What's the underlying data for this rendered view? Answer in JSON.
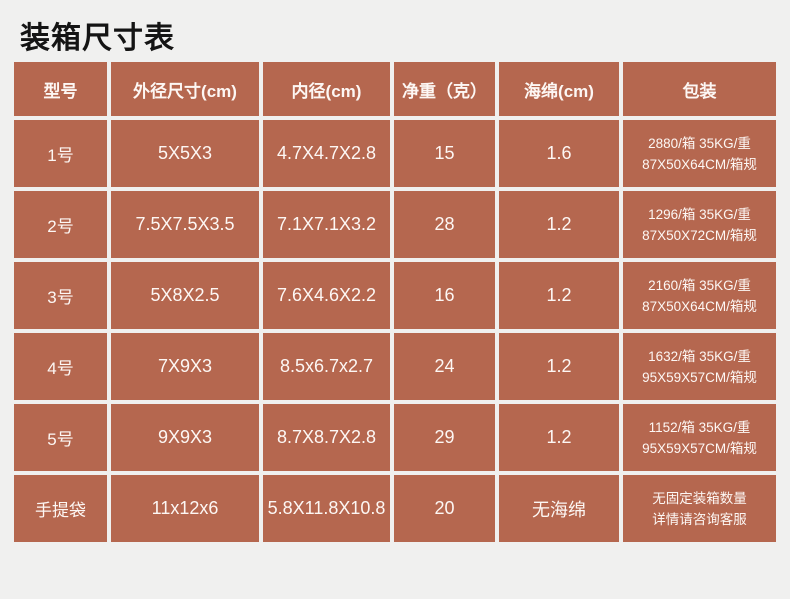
{
  "page": {
    "title": "装箱尺寸表"
  },
  "colors": {
    "page_background": "#f0f0ef",
    "title_text": "#141414",
    "cell_background": "#b5674f",
    "grid_lines": "#f0f0ef",
    "cell_text": "#fdf7f4"
  },
  "table": {
    "headers": [
      "型号",
      "外径尺寸(cm)",
      "内径(cm)",
      "净重（克）",
      "海绵(cm)",
      "包装"
    ],
    "rows": [
      {
        "model": "1号",
        "outer": "5X5X3",
        "inner": "4.7X4.7X2.8",
        "weight": "15",
        "sponge": "1.6",
        "packing_line1": "2880/箱 35KG/重",
        "packing_line2": "87X50X64CM/箱规"
      },
      {
        "model": "2号",
        "outer": "7.5X7.5X3.5",
        "inner": "7.1X7.1X3.2",
        "weight": "28",
        "sponge": "1.2",
        "packing_line1": "1296/箱 35KG/重",
        "packing_line2": "87X50X72CM/箱规"
      },
      {
        "model": "3号",
        "outer": "5X8X2.5",
        "inner": "7.6X4.6X2.2",
        "weight": "16",
        "sponge": "1.2",
        "packing_line1": "2160/箱 35KG/重",
        "packing_line2": "87X50X64CM/箱规"
      },
      {
        "model": "4号",
        "outer": "7X9X3",
        "inner": "8.5x6.7x2.7",
        "weight": "24",
        "sponge": "1.2",
        "packing_line1": "1632/箱 35KG/重",
        "packing_line2": "95X59X57CM/箱规"
      },
      {
        "model": "5号",
        "outer": "9X9X3",
        "inner": "8.7X8.7X2.8",
        "weight": "29",
        "sponge": "1.2",
        "packing_line1": "1152/箱 35KG/重",
        "packing_line2": "95X59X57CM/箱规"
      },
      {
        "model": "手提袋",
        "outer": "11x12x6",
        "inner": "5.8X11.8X10.8",
        "weight": "20",
        "sponge": "无海绵",
        "packing_line1": "无固定装箱数量",
        "packing_line2": "详情请咨询客服"
      }
    ]
  }
}
